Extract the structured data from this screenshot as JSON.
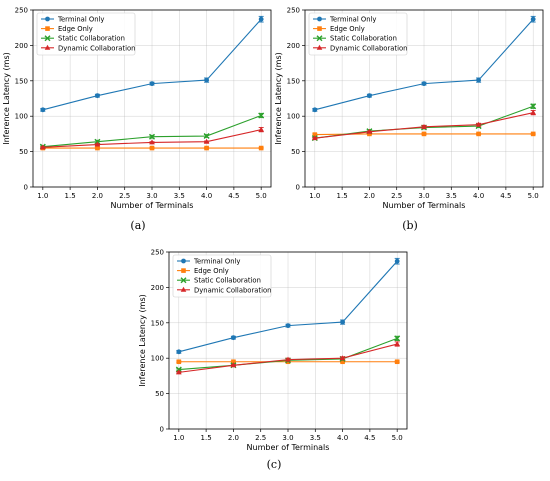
{
  "figure": {
    "captions": [
      "(a)",
      "(b)",
      "(c)"
    ]
  },
  "legend_labels": [
    "Terminal Only",
    "Edge Only",
    "Static Collaboration",
    "Dynamic Collaboration"
  ],
  "series_colors": {
    "Terminal Only": "#1f77b4",
    "Edge Only": "#ff7f0e",
    "Static Collaboration": "#2ca02c",
    "Dynamic Collaboration": "#d62728"
  },
  "chart_data": [
    {
      "type": "line",
      "caption": "(a)",
      "xlabel": "Number of Terminals",
      "ylabel": "Inference Latency (ms)",
      "xlim": [
        1.0,
        5.0
      ],
      "ylim": [
        0,
        250
      ],
      "xticks": [
        "1.0",
        "1.5",
        "2.0",
        "2.5",
        "3.0",
        "3.5",
        "4.0",
        "4.5",
        "5.0"
      ],
      "yticks": [
        "0",
        "50",
        "100",
        "150",
        "200",
        "250"
      ],
      "grid": true,
      "legend_position": "top-left",
      "x": [
        1,
        2,
        3,
        4,
        5
      ],
      "series": [
        {
          "name": "Terminal Only",
          "values": [
            109,
            129,
            146,
            151,
            237
          ],
          "err": [
            2,
            2,
            2,
            3,
            4
          ],
          "marker": "circle"
        },
        {
          "name": "Edge Only",
          "values": [
            55,
            55,
            55,
            55,
            55
          ],
          "err": [
            1,
            1,
            1,
            1,
            1
          ],
          "marker": "square"
        },
        {
          "name": "Static Collaboration",
          "values": [
            57,
            64,
            71,
            72,
            101
          ],
          "err": [
            1,
            2,
            2,
            2,
            3
          ],
          "marker": "x"
        },
        {
          "name": "Dynamic Collaboration",
          "values": [
            56,
            60,
            63,
            64,
            81
          ],
          "err": [
            1,
            1,
            1,
            1,
            3
          ],
          "marker": "triangle"
        }
      ]
    },
    {
      "type": "line",
      "caption": "(b)",
      "xlabel": "Number of Terminals",
      "ylabel": "Inference Latency (ms)",
      "xlim": [
        1.0,
        5.0
      ],
      "ylim": [
        0,
        250
      ],
      "xticks": [
        "1.0",
        "1.5",
        "2.0",
        "2.5",
        "3.0",
        "3.5",
        "4.0",
        "4.5",
        "5.0"
      ],
      "yticks": [
        "0",
        "50",
        "100",
        "150",
        "200",
        "250"
      ],
      "grid": true,
      "legend_position": "top-left",
      "x": [
        1,
        2,
        3,
        4,
        5
      ],
      "series": [
        {
          "name": "Terminal Only",
          "values": [
            109,
            129,
            146,
            151,
            237
          ],
          "err": [
            2,
            2,
            2,
            3,
            4
          ],
          "marker": "circle"
        },
        {
          "name": "Edge Only",
          "values": [
            74,
            75,
            75,
            75,
            75
          ],
          "err": [
            1,
            1,
            1,
            1,
            1
          ],
          "marker": "square"
        },
        {
          "name": "Static Collaboration",
          "values": [
            69,
            79,
            84,
            86,
            114
          ],
          "err": [
            1,
            2,
            2,
            2,
            3
          ],
          "marker": "x"
        },
        {
          "name": "Dynamic Collaboration",
          "values": [
            69,
            78,
            85,
            88,
            105
          ],
          "err": [
            1,
            1,
            2,
            2,
            3
          ],
          "marker": "triangle"
        }
      ]
    },
    {
      "type": "line",
      "caption": "(c)",
      "xlabel": "Number of Terminals",
      "ylabel": "Inference Latency (ms)",
      "xlim": [
        1.0,
        5.0
      ],
      "ylim": [
        0,
        250
      ],
      "xticks": [
        "1.0",
        "1.5",
        "2.0",
        "2.5",
        "3.0",
        "3.5",
        "4.0",
        "4.5",
        "5.0"
      ],
      "yticks": [
        "0",
        "50",
        "100",
        "150",
        "200",
        "250"
      ],
      "grid": true,
      "legend_position": "top-left",
      "x": [
        1,
        2,
        3,
        4,
        5
      ],
      "series": [
        {
          "name": "Terminal Only",
          "values": [
            109,
            129,
            146,
            151,
            237
          ],
          "err": [
            2,
            2,
            2,
            3,
            4
          ],
          "marker": "circle"
        },
        {
          "name": "Edge Only",
          "values": [
            95,
            95,
            95,
            95,
            95
          ],
          "err": [
            1,
            1,
            1,
            1,
            1
          ],
          "marker": "square"
        },
        {
          "name": "Static Collaboration",
          "values": [
            84,
            90,
            97,
            99,
            128
          ],
          "err": [
            1,
            2,
            2,
            2,
            3
          ],
          "marker": "x"
        },
        {
          "name": "Dynamic Collaboration",
          "values": [
            80,
            90,
            98,
            100,
            120
          ],
          "err": [
            1,
            1,
            2,
            2,
            3
          ],
          "marker": "triangle"
        }
      ]
    }
  ]
}
